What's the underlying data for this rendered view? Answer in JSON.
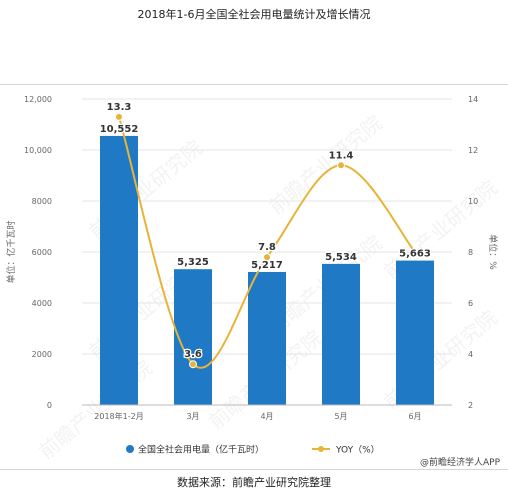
{
  "title": "2018年1-6月全国全社会用电量统计及增长情况",
  "source": "数据来源：前瞻产业研究院整理",
  "watermark_text": "前瞻产业研究院",
  "brand_credit": "@前瞻经济学人APP",
  "colors": {
    "bar": "#1f79c5",
    "line": "#e8b33a",
    "axis_text": "#666666",
    "grid": "#e6e6e6"
  },
  "chart_data": {
    "type": "bar",
    "categories": [
      "2018年1-2月",
      "3月",
      "4月",
      "5月",
      "6月"
    ],
    "series": [
      {
        "name": "全国全社会用电量（亿千瓦时）",
        "type": "bar",
        "axis": "left",
        "values": [
          10552,
          5325,
          5217,
          5534,
          5663
        ],
        "labels": [
          "10,552",
          "5,325",
          "5,217",
          "5,534",
          "5,663"
        ]
      },
      {
        "name": "YOY（%）",
        "type": "line",
        "axis": "right",
        "values": [
          13.3,
          3.6,
          7.8,
          11.4,
          8.0
        ],
        "labels": [
          "13.3",
          "3.6",
          "7.8",
          "11.4",
          ""
        ]
      }
    ],
    "ylabel": "单位：亿千瓦时",
    "y2label": "单位：%",
    "ylim": [
      0,
      12000
    ],
    "y2lim": [
      2,
      14
    ],
    "yticks": [
      0,
      2000,
      4000,
      6000,
      8000,
      10000,
      12000
    ],
    "yticklabels": [
      "0",
      "2000",
      "4000",
      "6000",
      "8000",
      "10,000",
      "12,000"
    ],
    "y2ticks": [
      2,
      4,
      6,
      8,
      10,
      12,
      14
    ],
    "y2ticklabels": [
      "2",
      "4",
      "6",
      "8",
      "10",
      "12",
      "14"
    ],
    "grid": true,
    "legend_position": "bottom"
  }
}
